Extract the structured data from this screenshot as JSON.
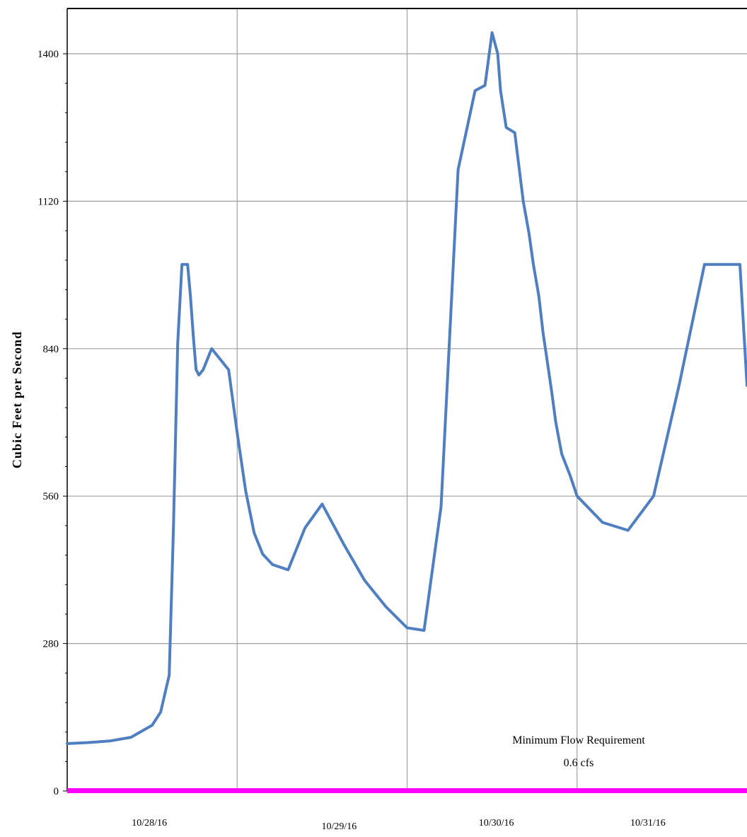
{
  "chart_data": {
    "type": "line",
    "title": "",
    "xlabel": "",
    "ylabel": "Cubic Feet per Second",
    "ylim": [
      0,
      1400
    ],
    "yticks": [
      0,
      280,
      560,
      840,
      1120,
      1400
    ],
    "xlim": [
      "10/27/16 12:00",
      "10/31/16 12:00"
    ],
    "x_tick_labels": [
      "10/28/16",
      "10/29/16",
      "10/30/16",
      "10/31/16"
    ],
    "grid": true,
    "colors": {
      "series": "#4f7fc0",
      "min_flow": "#ff00ff",
      "grid": "#a0a0a0"
    },
    "series": [
      {
        "x": [
          "10/27/16 12:00",
          "10/27/16 15:00",
          "10/27/16 18:00",
          "10/27/16 21:00",
          "10/28/16 00:00",
          "10/28/16 01:12",
          "10/28/16 02:24",
          "10/28/16 03:00",
          "10/28/16 03:36",
          "10/28/16 04:12",
          "10/28/16 05:00",
          "10/28/16 05:24",
          "10/28/16 05:48",
          "10/28/16 06:12",
          "10/28/16 06:36",
          "10/28/16 07:12",
          "10/28/16 08:24",
          "10/28/16 10:48",
          "10/28/16 12:00",
          "10/28/16 13:12",
          "10/28/16 14:24",
          "10/28/16 15:36",
          "10/28/16 17:00",
          "10/28/16 19:12",
          "10/28/16 21:36",
          "10/29/16 00:00",
          "10/29/16 03:00",
          "10/29/16 06:00",
          "10/29/16 09:00",
          "10/29/16 12:00",
          "10/29/16 14:24",
          "10/29/16 16:48",
          "10/29/16 19:12",
          "10/29/16 21:36",
          "10/29/16 23:00",
          "10/30/16 00:00",
          "10/30/16 00:48",
          "10/30/16 01:12",
          "10/30/16 02:00",
          "10/30/16 03:12",
          "10/30/16 04:24",
          "10/30/16 05:12",
          "10/30/16 05:50",
          "10/30/16 06:36",
          "10/30/16 07:12",
          "10/30/16 07:45",
          "10/30/16 08:24",
          "10/30/16 09:00",
          "10/30/16 09:50",
          "10/30/16 11:00",
          "10/30/16 12:00",
          "10/30/16 15:36",
          "10/30/16 19:12",
          "10/30/16 22:48",
          "10/31/16 02:24",
          "10/31/16 06:00",
          "10/31/16 07:30",
          "10/31/16 09:00",
          "10/31/16 10:00",
          "10/31/16 11:00",
          "10/31/16 12:00"
        ],
        "values": [
          90,
          92,
          95,
          102,
          125,
          150,
          220,
          500,
          850,
          1000,
          1000,
          940,
          865,
          800,
          790,
          800,
          840,
          800,
          680,
          570,
          490,
          450,
          430,
          420,
          500,
          545,
          470,
          400,
          350,
          310,
          305,
          540,
          1180,
          1330,
          1340,
          1440,
          1400,
          1330,
          1260,
          1250,
          1120,
          1060,
          1000,
          940,
          870,
          820,
          760,
          700,
          640,
          600,
          560,
          510,
          495,
          560,
          770,
          1000,
          1000,
          1000,
          1000,
          1000,
          770
        ]
      }
    ],
    "min_flow": {
      "value": 0.6,
      "label_line1": "Minimum Flow Requirement",
      "label_line2": "0.6 cfs"
    }
  }
}
